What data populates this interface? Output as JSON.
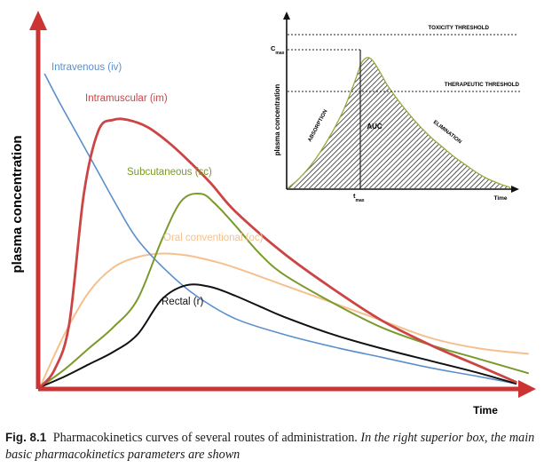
{
  "figure": {
    "caption_label": "Fig. 8.1",
    "caption_text": "Pharmacokinetics curves of several routes of administration.",
    "caption_italic": "In the right superior box, the main basic pharmacokinetics parameters are shown"
  },
  "chart_data": [
    {
      "type": "line",
      "title": "",
      "xlabel": "Time",
      "ylabel": "plasma concentration",
      "xlim": [
        0,
        10
      ],
      "ylim": [
        0,
        10
      ],
      "x_ticks": false,
      "y_ticks": false,
      "colors": {
        "axis": "#cc3333",
        "iv": "#5b8fcc",
        "im": "#cc4444",
        "sc": "#7a9a2a",
        "oc": "#f6c08e",
        "r": "#111111"
      },
      "series": [
        {
          "name": "Intravenous (iv)",
          "key": "iv",
          "x": [
            0.1,
            0.4,
            0.8,
            1.2,
            1.6,
            2.0,
            2.6,
            3.2,
            4.0,
            5.0,
            6.0,
            7.0,
            8.0,
            9.0,
            9.75
          ],
          "y": [
            8.9,
            8.1,
            7.1,
            6.1,
            5.1,
            4.2,
            3.3,
            2.6,
            1.95,
            1.5,
            1.15,
            0.85,
            0.55,
            0.3,
            0.1
          ]
        },
        {
          "name": "Intramuscular (im)",
          "key": "im",
          "x": [
            0.0,
            0.3,
            0.6,
            0.9,
            1.2,
            1.5,
            1.8,
            2.2,
            2.6,
            3.0,
            3.5,
            4.0,
            5.0,
            6.0,
            7.0,
            8.0,
            9.0,
            9.75
          ],
          "y": [
            0.0,
            0.5,
            1.8,
            5.5,
            7.3,
            7.6,
            7.6,
            7.4,
            7.0,
            6.5,
            5.8,
            5.0,
            3.8,
            2.8,
            1.9,
            1.2,
            0.6,
            0.15
          ]
        },
        {
          "name": "Subcutaneous (sc)",
          "key": "sc",
          "x": [
            0.0,
            0.5,
            1.0,
            1.5,
            2.0,
            2.5,
            2.9,
            3.3,
            3.6,
            4.0,
            4.5,
            5.0,
            6.0,
            7.0,
            8.0,
            9.0,
            10.0
          ],
          "y": [
            0.0,
            0.5,
            1.1,
            1.7,
            2.5,
            4.2,
            5.3,
            5.5,
            5.2,
            4.6,
            3.8,
            3.2,
            2.4,
            1.7,
            1.2,
            0.8,
            0.4
          ]
        },
        {
          "name": "Oral conventional (oc)",
          "key": "oc",
          "x": [
            0.0,
            0.5,
            1.0,
            1.5,
            2.0,
            2.5,
            3.0,
            3.5,
            4.0,
            5.0,
            6.0,
            7.0,
            8.0,
            9.0,
            10.0
          ],
          "y": [
            0.0,
            1.5,
            2.7,
            3.4,
            3.7,
            3.8,
            3.75,
            3.6,
            3.4,
            2.9,
            2.4,
            1.9,
            1.4,
            1.1,
            0.95
          ]
        },
        {
          "name": "Rectal (r)",
          "key": "r",
          "x": [
            0.0,
            0.5,
            1.0,
            1.5,
            2.0,
            2.5,
            3.0,
            3.5,
            4.0,
            4.5,
            5.0,
            6.0,
            7.0,
            8.0,
            9.0,
            9.75
          ],
          "y": [
            0.0,
            0.3,
            0.65,
            1.0,
            1.5,
            2.5,
            2.9,
            2.85,
            2.6,
            2.3,
            2.0,
            1.5,
            1.1,
            0.75,
            0.4,
            0.1
          ]
        }
      ]
    },
    {
      "type": "area",
      "title": "",
      "xlabel": "Time",
      "ylabel": "plasma concentration",
      "xlim": [
        0,
        10
      ],
      "ylim": [
        0,
        10
      ],
      "x_ticks": [
        "t_max"
      ],
      "y_ticks": [
        "C_max"
      ],
      "tick_labels": {
        "x_main": "t",
        "x_sub": "max",
        "y_main": "C",
        "y_sub": "max"
      },
      "thresholds": [
        {
          "label": "TOXICITY THRESHOLD",
          "y": 9.8
        },
        {
          "label": "THERAPEUTIC THRESHOLD",
          "y": 6.5
        }
      ],
      "annotations": [
        "ABSORPTION",
        "AUC",
        "ELIMINATION"
      ],
      "curve": {
        "x": [
          0.0,
          0.5,
          1.0,
          1.5,
          2.0,
          2.5,
          3.0,
          3.3,
          3.55,
          3.8,
          4.1,
          4.5,
          5.0,
          5.5,
          6.0,
          6.5,
          7.0,
          7.5,
          8.0,
          8.5,
          9.0,
          9.5,
          10.0
        ],
        "y": [
          0.0,
          0.6,
          1.4,
          2.4,
          3.6,
          5.0,
          6.8,
          8.0,
          8.4,
          8.25,
          7.6,
          6.6,
          5.6,
          4.7,
          3.9,
          3.2,
          2.6,
          2.0,
          1.5,
          1.0,
          0.6,
          0.3,
          0.05
        ]
      },
      "tmax": 3.55,
      "cmax": 8.4
    }
  ]
}
